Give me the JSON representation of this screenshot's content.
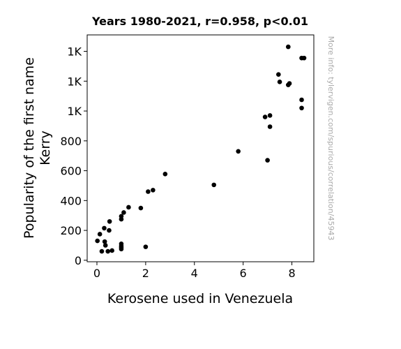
{
  "chart_data": {
    "type": "scatter",
    "title": "Years 1980-2021, r=0.958, p<0.01",
    "xlabel": "Kerosene used in Venezuela",
    "ylabel_lines": [
      "Popularity of the first name",
      "Kerry"
    ],
    "side_note": "More info: tylervigen.com/spurious/correlation/45943",
    "xlim": [
      -0.4,
      8.9
    ],
    "ylim": [
      -10,
      1510
    ],
    "x_ticks": [
      0,
      2,
      4,
      6,
      8
    ],
    "x_tick_labels": [
      "0",
      "2",
      "4",
      "6",
      "8"
    ],
    "y_ticks": [
      0,
      200,
      400,
      600,
      800,
      1000,
      1200,
      1400
    ],
    "y_tick_labels": [
      "0",
      "200",
      "400",
      "600",
      "800",
      "1K",
      "1K",
      "1K"
    ],
    "grid": false,
    "marker_color": "#000000",
    "points": [
      {
        "x": 0.02,
        "y": 130
      },
      {
        "x": 0.12,
        "y": 175
      },
      {
        "x": 0.2,
        "y": 60
      },
      {
        "x": 0.3,
        "y": 215
      },
      {
        "x": 0.32,
        "y": 125
      },
      {
        "x": 0.35,
        "y": 100
      },
      {
        "x": 0.45,
        "y": 60
      },
      {
        "x": 0.5,
        "y": 200
      },
      {
        "x": 0.52,
        "y": 260
      },
      {
        "x": 0.62,
        "y": 65
      },
      {
        "x": 1.0,
        "y": 110
      },
      {
        "x": 1.0,
        "y": 95
      },
      {
        "x": 1.0,
        "y": 85
      },
      {
        "x": 1.0,
        "y": 75
      },
      {
        "x": 1.0,
        "y": 295
      },
      {
        "x": 1.0,
        "y": 275
      },
      {
        "x": 1.1,
        "y": 320
      },
      {
        "x": 1.3,
        "y": 355
      },
      {
        "x": 1.8,
        "y": 350
      },
      {
        "x": 2.0,
        "y": 90
      },
      {
        "x": 2.1,
        "y": 460
      },
      {
        "x": 2.3,
        "y": 470
      },
      {
        "x": 2.8,
        "y": 578
      },
      {
        "x": 4.8,
        "y": 505
      },
      {
        "x": 5.8,
        "y": 730
      },
      {
        "x": 6.9,
        "y": 960
      },
      {
        "x": 7.0,
        "y": 670
      },
      {
        "x": 7.1,
        "y": 970
      },
      {
        "x": 7.1,
        "y": 895
      },
      {
        "x": 7.45,
        "y": 1245
      },
      {
        "x": 7.5,
        "y": 1195
      },
      {
        "x": 7.85,
        "y": 1175
      },
      {
        "x": 7.9,
        "y": 1185
      },
      {
        "x": 7.85,
        "y": 1430
      },
      {
        "x": 8.4,
        "y": 1355
      },
      {
        "x": 8.5,
        "y": 1355
      },
      {
        "x": 8.4,
        "y": 1075
      },
      {
        "x": 8.4,
        "y": 1020
      }
    ]
  }
}
